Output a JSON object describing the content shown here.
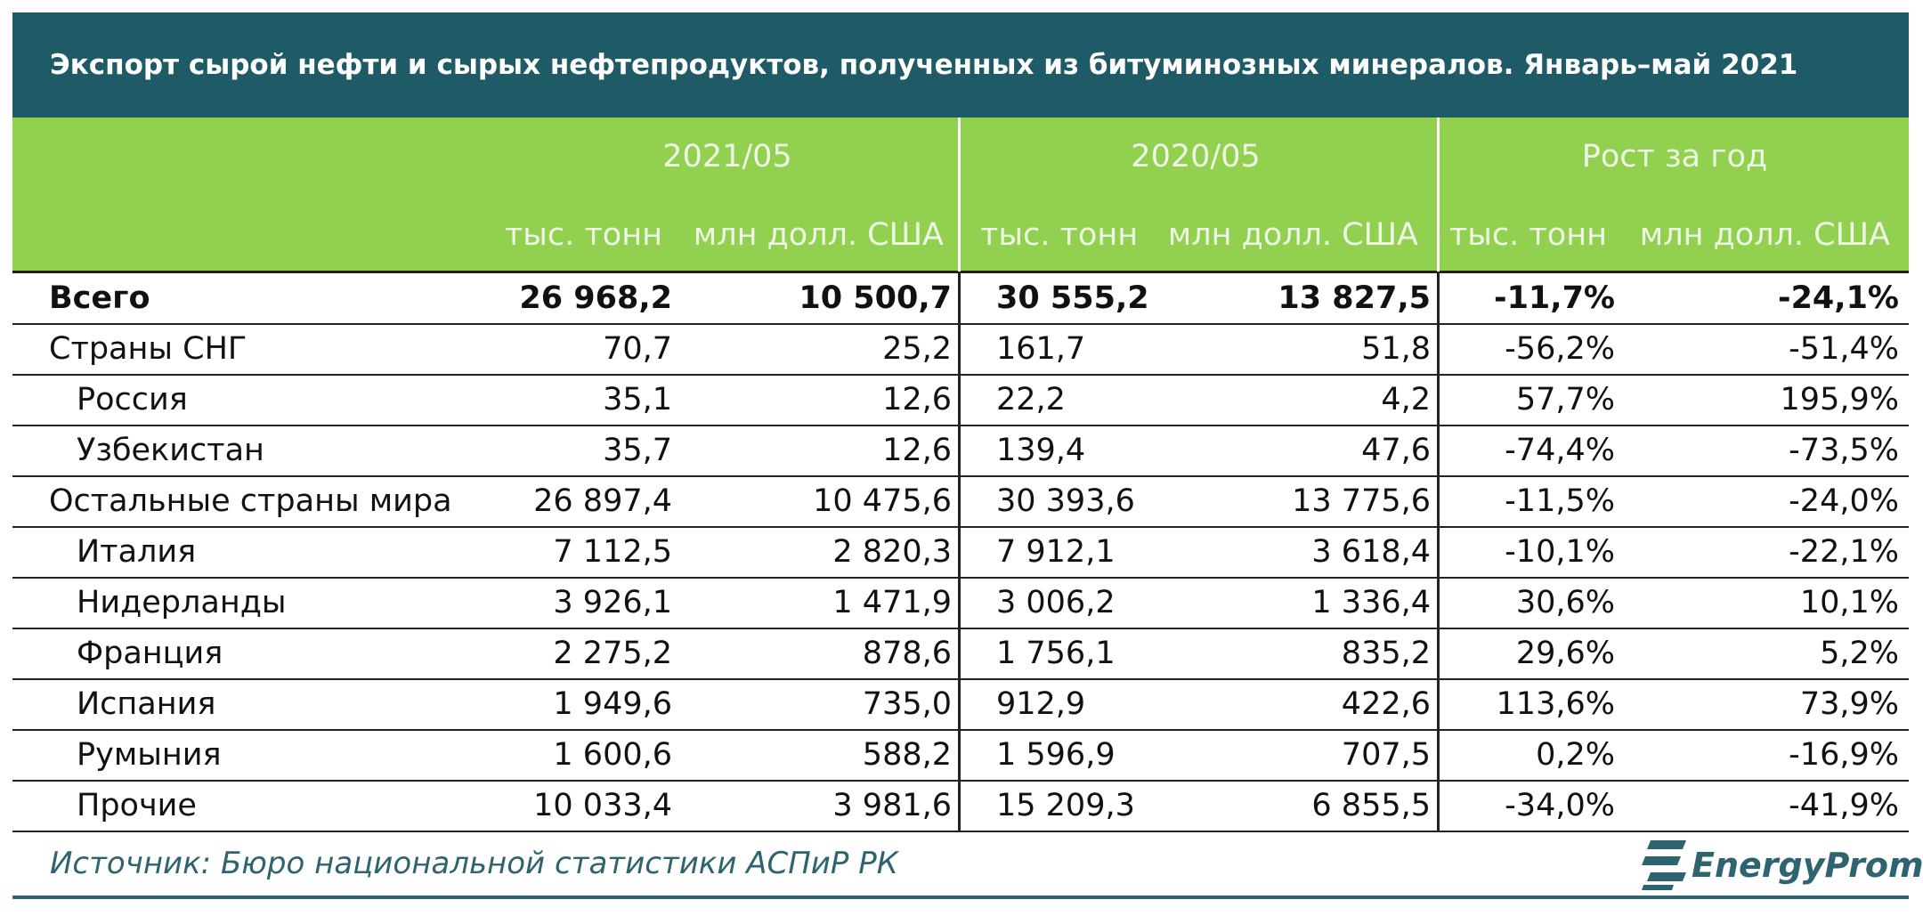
{
  "title": "Экспорт сырой нефти и сырых нефтепродуктов, полученных из битуминозных минералов. Январь–май 2021",
  "table": {
    "groups": [
      "2021/05",
      "2020/05",
      "Рост за год"
    ],
    "subheaders": [
      "тыс. тонн",
      "млн долл. США",
      "тыс. тонн",
      "млн долл. США",
      "тыс. тонн",
      "млн долл. США"
    ],
    "rows": [
      [
        "Всего",
        "26 968,2",
        "10 500,7",
        "30 555,2",
        "13 827,5",
        "-11,7%",
        "-24,1%"
      ],
      [
        "Страны СНГ",
        "70,7",
        "25,2",
        "161,7",
        "51,8",
        "-56,2%",
        "-51,4%"
      ],
      [
        "Россия",
        "35,1",
        "12,6",
        "22,2",
        "4,2",
        "57,7%",
        "195,9%"
      ],
      [
        "Узбекистан",
        "35,7",
        "12,6",
        "139,4",
        "47,6",
        "-74,4%",
        "-73,5%"
      ],
      [
        "Остальные страны мира",
        "26 897,4",
        "10 475,6",
        "30 393,6",
        "13 775,6",
        "-11,5%",
        "-24,0%"
      ],
      [
        "Италия",
        "7 112,5",
        "2 820,3",
        "7 912,1",
        "3 618,4",
        "-10,1%",
        "-22,1%"
      ],
      [
        "Нидерланды",
        "3 926,1",
        "1 471,9",
        "3 006,2",
        "1 336,4",
        "30,6%",
        "10,1%"
      ],
      [
        "Франция",
        "2 275,2",
        "878,6",
        "1 756,1",
        "835,2",
        "29,6%",
        "5,2%"
      ],
      [
        "Испания",
        "1 949,6",
        "735,0",
        "912,9",
        "422,6",
        "113,6%",
        "73,9%"
      ],
      [
        "Румыния",
        "1 600,6",
        "588,2",
        "1 596,9",
        "707,5",
        "0,2%",
        "-16,9%"
      ],
      [
        "Прочие",
        "10 033,4",
        "3 981,6",
        "15 209,3",
        "6 855,5",
        "-34,0%",
        "-41,9%"
      ]
    ]
  },
  "source": "Источник: Бюро национальной статистики АСПиР РК",
  "logo": "EnergyProm"
}
